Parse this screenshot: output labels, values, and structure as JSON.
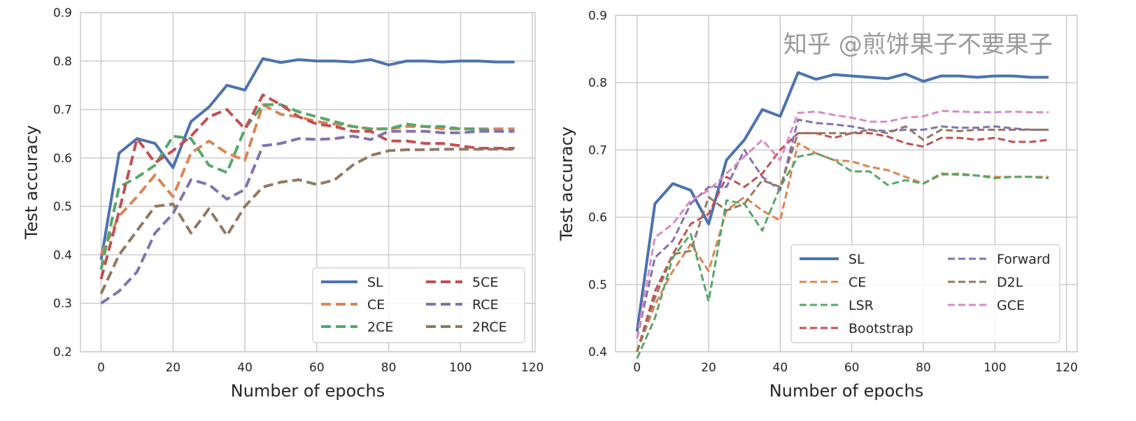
{
  "watermark": "知乎 @煎饼果子不要果子",
  "chart_data": [
    {
      "type": "line",
      "xlabel": "Number of epochs",
      "ylabel": "Test accuracy",
      "xlim": [
        -5.75,
        120.75
      ],
      "ylim": [
        0.2,
        0.9
      ],
      "xticks": [
        0,
        20,
        40,
        60,
        80,
        100,
        120
      ],
      "yticks": [
        0.2,
        0.3,
        0.4,
        0.5,
        0.6,
        0.7,
        0.8,
        0.9
      ],
      "grid": true,
      "legend": "lower-right",
      "legend_columns": 2,
      "x": [
        0,
        5,
        10,
        15,
        20,
        25,
        30,
        35,
        40,
        45,
        50,
        55,
        60,
        65,
        70,
        75,
        80,
        85,
        90,
        95,
        100,
        105,
        110,
        115
      ],
      "series": [
        {
          "name": "SL",
          "color": "#4c72b0",
          "style": "solid",
          "values": [
            0.39,
            0.61,
            0.64,
            0.63,
            0.58,
            0.675,
            0.705,
            0.75,
            0.74,
            0.805,
            0.797,
            0.803,
            0.8,
            0.8,
            0.798,
            0.803,
            0.792,
            0.8,
            0.8,
            0.798,
            0.8,
            0.8,
            0.798,
            0.798
          ]
        },
        {
          "name": "CE",
          "color": "#dd8452",
          "style": "dashed",
          "values": [
            0.4,
            0.48,
            0.52,
            0.565,
            0.52,
            0.61,
            0.635,
            0.61,
            0.595,
            0.71,
            0.69,
            0.685,
            0.675,
            0.67,
            0.665,
            0.66,
            0.66,
            0.665,
            0.665,
            0.66,
            0.66,
            0.66,
            0.66,
            0.66
          ]
        },
        {
          "name": "2CE",
          "color": "#55a868",
          "style": "dashed",
          "values": [
            0.37,
            0.54,
            0.56,
            0.585,
            0.645,
            0.64,
            0.585,
            0.57,
            0.66,
            0.71,
            0.71,
            0.695,
            0.685,
            0.675,
            0.665,
            0.66,
            0.66,
            0.67,
            0.665,
            0.665,
            0.66,
            0.66,
            0.655,
            0.655
          ]
        },
        {
          "name": "5CE",
          "color": "#c44e52",
          "style": "dashed",
          "values": [
            0.35,
            0.49,
            0.64,
            0.59,
            0.615,
            0.645,
            0.685,
            0.7,
            0.66,
            0.73,
            0.71,
            0.685,
            0.67,
            0.665,
            0.655,
            0.655,
            0.635,
            0.635,
            0.63,
            0.63,
            0.625,
            0.62,
            0.62,
            0.62
          ]
        },
        {
          "name": "RCE",
          "color": "#8172b3",
          "style": "dashed",
          "values": [
            0.3,
            0.325,
            0.365,
            0.445,
            0.485,
            0.555,
            0.545,
            0.515,
            0.535,
            0.625,
            0.63,
            0.64,
            0.638,
            0.64,
            0.645,
            0.638,
            0.655,
            0.655,
            0.655,
            0.652,
            0.652,
            0.655,
            0.655,
            0.655
          ]
        },
        {
          "name": "2RCE",
          "color": "#937860",
          "style": "dashed",
          "values": [
            0.32,
            0.4,
            0.45,
            0.5,
            0.505,
            0.445,
            0.495,
            0.44,
            0.5,
            0.54,
            0.55,
            0.555,
            0.545,
            0.555,
            0.585,
            0.605,
            0.615,
            0.617,
            0.617,
            0.618,
            0.618,
            0.618,
            0.618,
            0.618
          ]
        }
      ]
    },
    {
      "type": "line",
      "xlabel": "Number of epochs",
      "ylabel": "Test accuracy",
      "xlim": [
        -6,
        123
      ],
      "ylim": [
        0.4,
        0.9
      ],
      "xticks": [
        0,
        20,
        40,
        60,
        80,
        100,
        120
      ],
      "yticks": [
        0.4,
        0.5,
        0.6,
        0.7,
        0.8,
        0.9
      ],
      "grid": true,
      "legend": "lower-right",
      "legend_columns": 2,
      "x": [
        0,
        5,
        10,
        15,
        20,
        25,
        30,
        35,
        40,
        45,
        50,
        55,
        60,
        65,
        70,
        75,
        80,
        85,
        90,
        95,
        100,
        105,
        110,
        115
      ],
      "series": [
        {
          "name": "SL",
          "color": "#4c72b0",
          "style": "solid",
          "values": [
            0.43,
            0.62,
            0.65,
            0.64,
            0.59,
            0.685,
            0.715,
            0.76,
            0.75,
            0.815,
            0.805,
            0.812,
            0.81,
            0.808,
            0.806,
            0.813,
            0.802,
            0.81,
            0.81,
            0.808,
            0.81,
            0.81,
            0.808,
            0.808
          ]
        },
        {
          "name": "CE",
          "color": "#dd8452",
          "style": "dashed",
          "values": [
            0.4,
            0.47,
            0.52,
            0.56,
            0.52,
            0.61,
            0.63,
            0.61,
            0.595,
            0.71,
            0.695,
            0.685,
            0.683,
            0.675,
            0.67,
            0.66,
            0.65,
            0.663,
            0.665,
            0.662,
            0.66,
            0.66,
            0.66,
            0.66
          ]
        },
        {
          "name": "LSR",
          "color": "#55a868",
          "style": "dashed",
          "values": [
            0.39,
            0.45,
            0.54,
            0.575,
            0.475,
            0.625,
            0.62,
            0.58,
            0.645,
            0.69,
            0.695,
            0.685,
            0.668,
            0.668,
            0.648,
            0.655,
            0.65,
            0.665,
            0.663,
            0.662,
            0.658,
            0.66,
            0.66,
            0.658
          ]
        },
        {
          "name": "Bootstrap",
          "color": "#c44e52",
          "style": "dashed",
          "values": [
            0.4,
            0.49,
            0.545,
            0.59,
            0.605,
            0.66,
            0.645,
            0.665,
            0.7,
            0.725,
            0.725,
            0.718,
            0.725,
            0.725,
            0.72,
            0.71,
            0.705,
            0.718,
            0.718,
            0.715,
            0.718,
            0.712,
            0.712,
            0.715
          ]
        },
        {
          "name": "Forward",
          "color": "#8172b3",
          "style": "dashed",
          "values": [
            0.42,
            0.54,
            0.565,
            0.62,
            0.645,
            0.645,
            0.7,
            0.66,
            0.64,
            0.745,
            0.74,
            0.738,
            0.735,
            0.73,
            0.728,
            0.73,
            0.73,
            0.735,
            0.733,
            0.733,
            0.735,
            0.732,
            0.73,
            0.73
          ]
        },
        {
          "name": "D2L",
          "color": "#937860",
          "style": "dashed",
          "values": [
            0.4,
            0.48,
            0.545,
            0.55,
            0.63,
            0.61,
            0.62,
            0.655,
            0.645,
            0.725,
            0.725,
            0.725,
            0.725,
            0.73,
            0.725,
            0.735,
            0.715,
            0.73,
            0.728,
            0.73,
            0.73,
            0.73,
            0.73,
            0.73
          ]
        },
        {
          "name": "GCE",
          "color": "#da8bc3",
          "style": "dashed",
          "values": [
            0.42,
            0.57,
            0.59,
            0.625,
            0.64,
            0.665,
            0.69,
            0.715,
            0.685,
            0.755,
            0.757,
            0.752,
            0.748,
            0.742,
            0.742,
            0.748,
            0.75,
            0.758,
            0.757,
            0.756,
            0.756,
            0.757,
            0.756,
            0.756
          ]
        }
      ]
    }
  ]
}
